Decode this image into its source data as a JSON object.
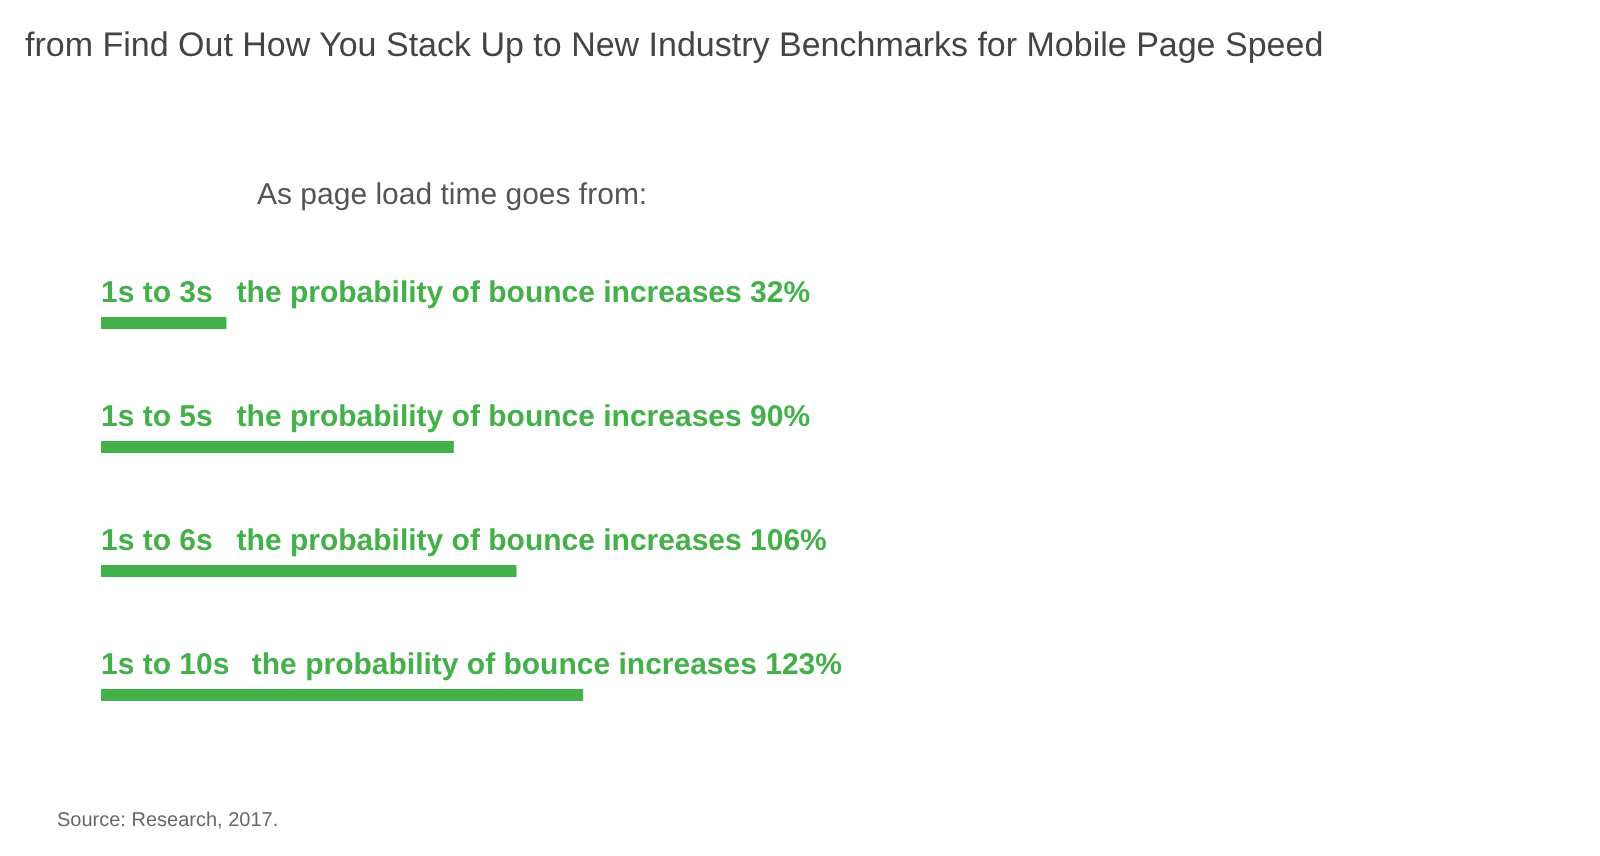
{
  "chart_data": {
    "type": "bar",
    "orientation": "horizontal",
    "title": "from Find Out How You Stack Up to New Industry Benchmarks for Mobile Page Speed",
    "subtitle": "As page load time goes from:",
    "categories": [
      "1s to 3s",
      "1s to 5s",
      "1s to 6s",
      "1s to 10s"
    ],
    "values": [
      32,
      90,
      106,
      123
    ],
    "color": "#43b04a",
    "value_labels": [
      "the probability of bounce increases 32%",
      "the probability of bounce increases 90%",
      "the probability of bounce increases 106%",
      "the probability of bounce increases 123%"
    ],
    "annotations": [
      "Source: Research, 2017."
    ],
    "grid": false
  }
}
